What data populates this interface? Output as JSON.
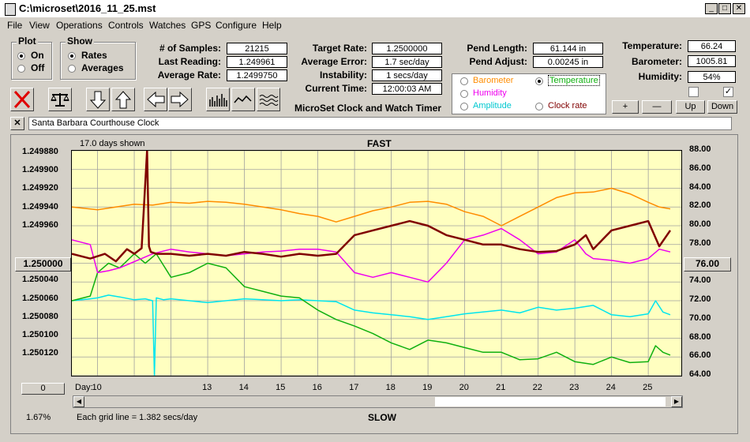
{
  "window": {
    "title": "C:\\microset\\2016_11_25.mst"
  },
  "menu": [
    "File",
    "View",
    "Operations",
    "Controls",
    "Watches",
    "GPS",
    "Configure",
    "Help"
  ],
  "plot_group": {
    "legend": "Plot",
    "on": "On",
    "off": "Off",
    "selected": "On"
  },
  "show_group": {
    "legend": "Show",
    "rates": "Rates",
    "averages": "Averages",
    "selected": "Rates"
  },
  "stats": {
    "samples_label": "# of Samples:",
    "samples": "21215",
    "last_reading_label": "Last Reading:",
    "last_reading": "1.249961",
    "average_rate_label": "Average Rate:",
    "average_rate": "1.2499750",
    "target_rate_label": "Target Rate:",
    "target_rate": "1.2500000",
    "average_error_label": "Average Error:",
    "average_error": "1.7 sec/day",
    "instability_label": "Instability:",
    "instability": "1 secs/day",
    "current_time_label": "Current Time:",
    "current_time": "12:00:03 AM",
    "pend_length_label": "Pend Length:",
    "pend_length": "61.144 in",
    "pend_adjust_label": "Pend Adjust:",
    "pend_adjust": "0.00245 in",
    "temperature_label": "Temperature:",
    "temperature": "66.24",
    "barometer_label": "Barometer:",
    "barometer": "1005.81",
    "humidity_label": "Humidity:",
    "humidity": "54%"
  },
  "subtitle": "MicroSet Clock and Watch Timer",
  "aux_legend": {
    "barometer": "Barometer",
    "temperature": "Temperature",
    "humidity": "Humidity",
    "amplitude": "Amplitude",
    "clock_rate": "Clock rate",
    "selected": "Temperature"
  },
  "adjust_buttons": {
    "plus": "+",
    "minus": "—",
    "up": "Up",
    "down": "Down"
  },
  "clock_name": "Santa Barbara Courthouse Clock",
  "chart_data": {
    "type": "line",
    "header_left": "17.0 days shown",
    "header_center": "FAST",
    "footer_center": "SLOW",
    "footer_left": "1.67%",
    "footer_note": "Each grid line = 1.382 secs/day",
    "x_prefix": "Day:",
    "x_ticks": [
      "10",
      "13",
      "14",
      "15",
      "16",
      "17",
      "18",
      "19",
      "20",
      "21",
      "22",
      "23",
      "24",
      "25"
    ],
    "left_axis": [
      "1.249880",
      "1.249900",
      "1.249920",
      "1.249940",
      "1.249960",
      "1.250000",
      "1.250020",
      "1.250040",
      "1.250060",
      "1.250080",
      "1.250100",
      "1.250120"
    ],
    "left_highlight": "1.250000",
    "left_bottom_value": "0",
    "right_axis": [
      "88.00",
      "86.00",
      "84.00",
      "82.00",
      "80.00",
      "78.00",
      "76.00",
      "74.00",
      "72.00",
      "70.00",
      "68.00",
      "66.00",
      "64.00"
    ],
    "right_highlight": "76.00",
    "colors": {
      "rate": "#800000",
      "barometer": "#ff8c00",
      "humidity": "#ee00ee",
      "amplitude": "#00e5ee",
      "temperature": "#10b010",
      "plot_bg": "#ffffc0",
      "grid": "#a0a0a0"
    },
    "series": [
      {
        "name": "Clock rate",
        "key": "rate",
        "x": [
          9.3,
          9.8,
          10.2,
          10.5,
          10.8,
          11.0,
          11.2,
          11.35,
          11.4,
          11.45,
          11.6,
          12.0,
          12.5,
          13,
          13.5,
          14,
          14.5,
          15,
          15.5,
          16,
          16.5,
          17,
          17.5,
          18,
          18.5,
          19,
          19.5,
          20,
          20.5,
          21,
          21.5,
          22,
          22.5,
          23,
          23.3,
          23.5,
          24,
          24.5,
          25,
          25.3,
          25.6
        ],
        "y": [
          77,
          76.5,
          77,
          76.2,
          77.5,
          77,
          77.6,
          88,
          77.8,
          77.2,
          77,
          77,
          76.8,
          77,
          76.8,
          77.2,
          77,
          76.7,
          77,
          76.8,
          77,
          79,
          79.5,
          80,
          80.5,
          80,
          79,
          78.5,
          78,
          78,
          77.5,
          77.2,
          77.3,
          78,
          79,
          77.5,
          79.5,
          80,
          80.5,
          77.8,
          79.5
        ]
      },
      {
        "name": "Barometer",
        "key": "barometer",
        "x": [
          9.3,
          10,
          10.5,
          11,
          11.5,
          12,
          12.5,
          13,
          13.5,
          14,
          14.5,
          15,
          15.5,
          16,
          16.5,
          17,
          17.5,
          18,
          18.5,
          19,
          19.5,
          20,
          20.5,
          21,
          21.5,
          22,
          22.5,
          23,
          23.5,
          24,
          24.5,
          25,
          25.3,
          25.6
        ],
        "y": [
          82,
          81.7,
          82,
          82.3,
          82.2,
          82.5,
          82.4,
          82.6,
          82.5,
          82.3,
          82,
          81.7,
          81.3,
          81,
          80.4,
          81,
          81.6,
          82,
          82.5,
          82.6,
          82.3,
          81.5,
          81,
          80,
          81,
          82,
          83,
          83.5,
          83.6,
          84,
          83.4,
          82.5,
          82,
          81.8
        ]
      },
      {
        "name": "Humidity",
        "key": "humidity",
        "x": [
          9.3,
          9.8,
          10,
          10.3,
          10.6,
          10.9,
          11.2,
          11.5,
          12,
          12.5,
          13,
          13.5,
          14,
          14.5,
          15,
          15.5,
          16,
          16.5,
          17,
          17.5,
          18,
          18.5,
          19,
          19.5,
          20,
          20.5,
          21,
          21.5,
          22,
          22.5,
          23,
          23.3,
          23.5,
          24,
          24.5,
          25,
          25.3,
          25.6
        ],
        "y": [
          78.5,
          78,
          75,
          75.2,
          75.5,
          76,
          76.5,
          77,
          77.5,
          77.2,
          77,
          76.8,
          77,
          77.2,
          77.3,
          77.5,
          77.5,
          77.2,
          75,
          74.5,
          75,
          74.5,
          74,
          76,
          78.5,
          79,
          79.7,
          78.5,
          77,
          77.2,
          78.5,
          77,
          76.5,
          76.3,
          76,
          76.5,
          77.5,
          77.2
        ]
      },
      {
        "name": "Amplitude",
        "key": "amplitude",
        "x": [
          9.3,
          9.8,
          10,
          10.3,
          10.6,
          11,
          11.3,
          11.5,
          11.55,
          11.6,
          11.8,
          12,
          12.5,
          13,
          13.5,
          14,
          14.5,
          15,
          15.5,
          16,
          16.5,
          17,
          17.5,
          18,
          18.5,
          19,
          19.5,
          20,
          20.5,
          21,
          21.5,
          22,
          22.5,
          23,
          23.5,
          24,
          24.5,
          25,
          25.2,
          25.4,
          25.6
        ],
        "y": [
          72,
          72.2,
          72.3,
          72.6,
          72.4,
          72.1,
          72.2,
          72,
          64,
          72.3,
          72.1,
          72.2,
          72,
          71.8,
          72,
          72.2,
          72.1,
          72,
          72.1,
          72,
          71.9,
          71,
          70.7,
          70.5,
          70.3,
          70,
          70.3,
          70.6,
          70.8,
          71,
          70.7,
          71.3,
          71,
          71.2,
          71.5,
          70.5,
          70.3,
          70.6,
          72,
          70.8,
          70.5
        ]
      },
      {
        "name": "Temperature",
        "key": "temperature",
        "x": [
          9.3,
          9.8,
          10,
          10.3,
          10.6,
          11,
          11.3,
          11.6,
          12,
          12.5,
          13,
          13.5,
          14,
          14.5,
          15,
          15.5,
          16,
          16.5,
          17,
          17.5,
          18,
          18.5,
          19,
          19.5,
          20,
          20.5,
          21,
          21.5,
          22,
          22.5,
          23,
          23.5,
          24,
          24.5,
          25,
          25.2,
          25.4,
          25.6
        ],
        "y": [
          72,
          72.5,
          75,
          76,
          75.5,
          77,
          76,
          77,
          74.5,
          75,
          76,
          75.5,
          73.5,
          73,
          72.5,
          72.3,
          71,
          70,
          69.3,
          68.5,
          67.5,
          66.8,
          67.8,
          67.5,
          67,
          66.5,
          66.5,
          65.7,
          65.8,
          66.5,
          65.5,
          65.2,
          66,
          65.4,
          65.5,
          67.2,
          66.5,
          66.2
        ]
      }
    ]
  }
}
